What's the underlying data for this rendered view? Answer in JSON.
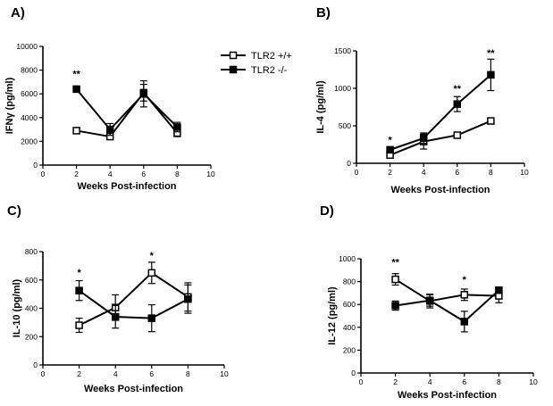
{
  "legend": {
    "placement": "top-center",
    "entries": [
      {
        "label": "TLR2 +/+",
        "marker": "open-square"
      },
      {
        "label": "TLR2 -/-",
        "marker": "filled-square"
      }
    ]
  },
  "chart_data": [
    {
      "type": "line",
      "panel": "A)",
      "title": "",
      "xlabel": "Weeks Post-infection",
      "ylabel": "IFNγ (pg/ml)",
      "xlim": [
        0,
        10
      ],
      "ylim": [
        0,
        10000
      ],
      "xticks": [
        0,
        2,
        4,
        6,
        8,
        10
      ],
      "yticks": [
        0,
        2000,
        4000,
        6000,
        8000,
        10000
      ],
      "x": [
        2,
        4,
        6,
        8
      ],
      "series": [
        {
          "name": "TLR2 +/+",
          "marker": "open-square",
          "values": [
            2900,
            2400,
            6100,
            2700
          ],
          "err": [
            100,
            250,
            700,
            300
          ]
        },
        {
          "name": "TLR2 -/-",
          "marker": "filled-square",
          "values": [
            6400,
            3000,
            6000,
            3200
          ],
          "err": [
            100,
            500,
            1100,
            400
          ]
        }
      ],
      "annotations": [
        {
          "x": 2,
          "y": 7400,
          "text": "**"
        }
      ]
    },
    {
      "type": "line",
      "panel": "B)",
      "title": "",
      "xlabel": "Weeks Post-infection",
      "ylabel": "IL-4 (pg/ml)",
      "xlim": [
        0,
        10
      ],
      "ylim": [
        0,
        1500
      ],
      "xticks": [
        0,
        2,
        4,
        6,
        8,
        10
      ],
      "yticks": [
        0,
        500,
        1000,
        1500
      ],
      "x": [
        2,
        4,
        6,
        8
      ],
      "series": [
        {
          "name": "TLR2 +/+",
          "marker": "open-square",
          "values": [
            110,
            290,
            375,
            565
          ],
          "err": [
            15,
            100,
            40,
            40
          ]
        },
        {
          "name": "TLR2 -/-",
          "marker": "filled-square",
          "values": [
            180,
            335,
            790,
            1180
          ],
          "err": [
            20,
            70,
            100,
            210
          ]
        }
      ],
      "annotations": [
        {
          "x": 2,
          "y": 270,
          "text": "*"
        },
        {
          "x": 6,
          "y": 950,
          "text": "**"
        },
        {
          "x": 8,
          "y": 1430,
          "text": "**"
        }
      ]
    },
    {
      "type": "line",
      "panel": "C)",
      "title": "",
      "xlabel": "Weeks Post-infection",
      "ylabel": "IL-10 (pg/ml)",
      "xlim": [
        0,
        10
      ],
      "ylim": [
        0,
        800
      ],
      "xticks": [
        0,
        2,
        4,
        6,
        8,
        10
      ],
      "yticks": [
        0,
        200,
        400,
        600,
        800
      ],
      "x": [
        2,
        4,
        6,
        8
      ],
      "series": [
        {
          "name": "TLR2 +/+",
          "marker": "open-square",
          "values": [
            280,
            405,
            650,
            480
          ],
          "err": [
            50,
            90,
            75,
            100
          ]
        },
        {
          "name": "TLR2 -/-",
          "marker": "filled-square",
          "values": [
            525,
            340,
            330,
            465
          ],
          "err": [
            70,
            80,
            95,
            100
          ]
        }
      ],
      "annotations": [
        {
          "x": 2,
          "y": 630,
          "text": "*"
        },
        {
          "x": 6,
          "y": 750,
          "text": "*"
        }
      ]
    },
    {
      "type": "line",
      "panel": "D)",
      "title": "",
      "xlabel": "Weeks Post-infection",
      "ylabel": "IL-12 (pg/ml)",
      "xlim": [
        0,
        10
      ],
      "ylim": [
        0,
        1000
      ],
      "xticks": [
        0,
        2,
        4,
        6,
        8,
        10
      ],
      "yticks": [
        0,
        200,
        400,
        600,
        800,
        1000
      ],
      "x": [
        2,
        4,
        6,
        8
      ],
      "series": [
        {
          "name": "TLR2 +/+",
          "marker": "open-square",
          "values": [
            820,
            630,
            685,
            675
          ],
          "err": [
            50,
            60,
            50,
            60
          ]
        },
        {
          "name": "TLR2 -/-",
          "marker": "filled-square",
          "values": [
            590,
            635,
            450,
            725
          ],
          "err": [
            40,
            50,
            90,
            20
          ]
        }
      ],
      "annotations": [
        {
          "x": 2,
          "y": 940,
          "text": "**"
        },
        {
          "x": 6,
          "y": 790,
          "text": "*"
        }
      ]
    }
  ]
}
